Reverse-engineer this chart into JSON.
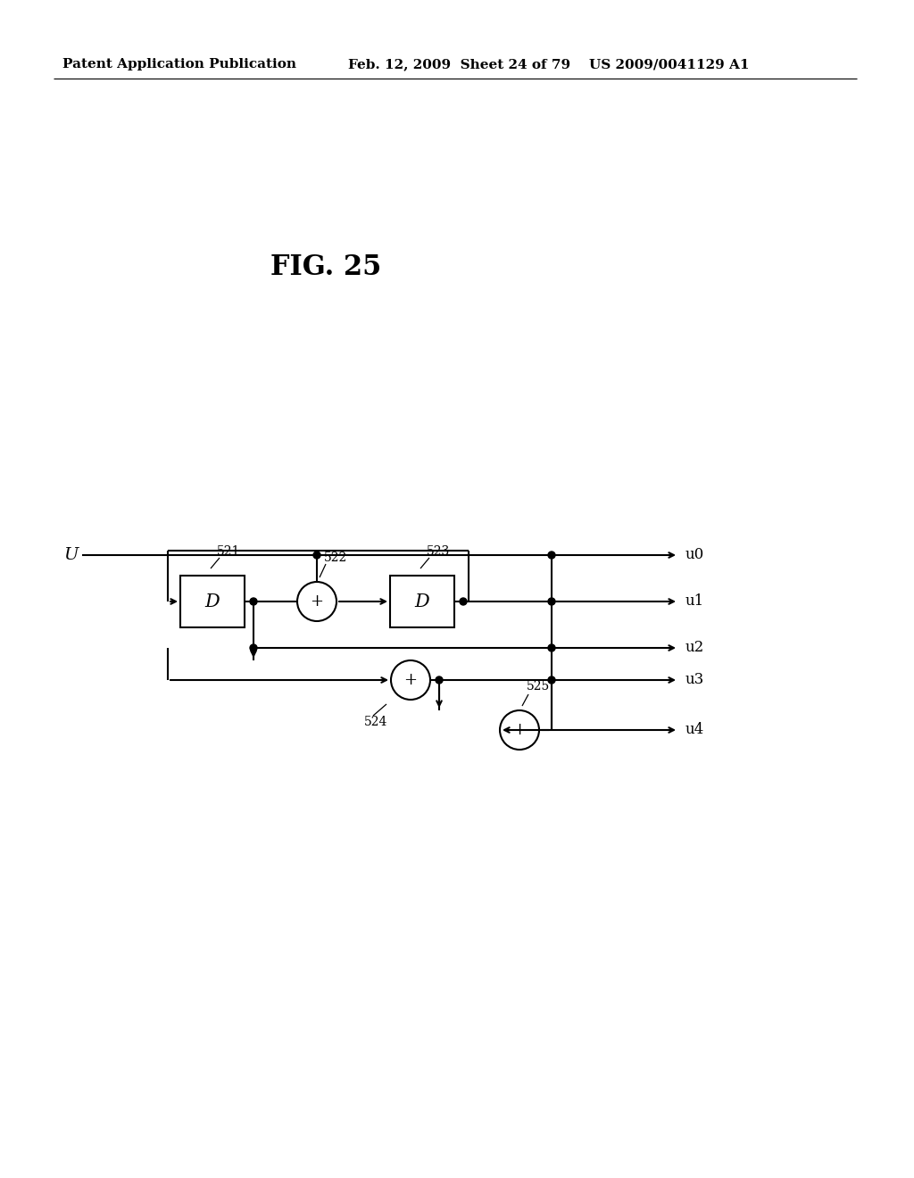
{
  "background_color": "#ffffff",
  "header_left": "Patent Application Publication",
  "header_center": "Feb. 12, 2009  Sheet 24 of 79",
  "header_right": "US 2009/0041129 A1",
  "figure_title": "FIG. 25",
  "header_fontsize": 11,
  "title_fontsize": 22
}
